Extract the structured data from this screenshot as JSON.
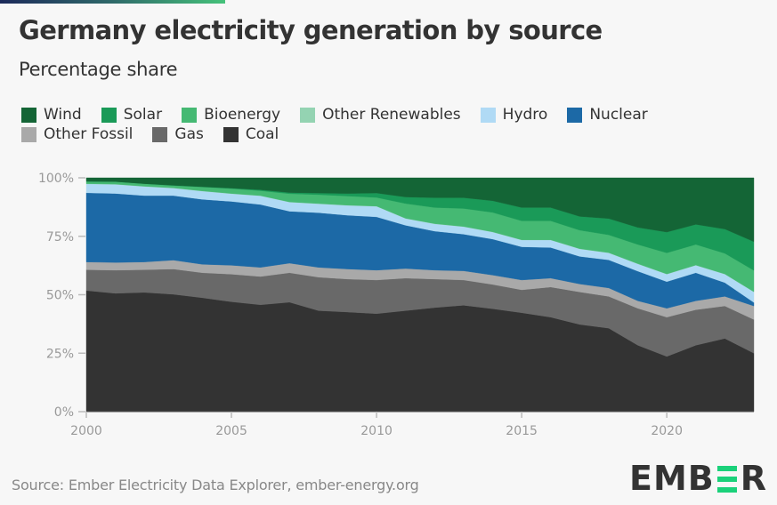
{
  "header": {
    "title": "Germany electricity generation by source",
    "subtitle": "Percentage share"
  },
  "footer": {
    "source": "Source: Ember Electricity Data Explorer, ember-energy.org",
    "logo": {
      "left": "EMB",
      "right": "R",
      "accent_color": "#1bd17a"
    }
  },
  "chart_data": {
    "type": "area",
    "stacked": true,
    "normalized": true,
    "title": "Germany electricity generation by source",
    "subtitle": "Percentage share",
    "xlabel": "",
    "ylabel": "",
    "x": [
      2000,
      2001,
      2002,
      2003,
      2004,
      2005,
      2006,
      2007,
      2008,
      2009,
      2010,
      2011,
      2012,
      2013,
      2014,
      2015,
      2016,
      2017,
      2018,
      2019,
      2020,
      2021,
      2022,
      2023
    ],
    "xlim": [
      2000,
      2023
    ],
    "ylim": [
      0,
      100
    ],
    "x_ticks": [
      2000,
      2005,
      2010,
      2015,
      2020
    ],
    "x_tick_labels": [
      "2000",
      "2005",
      "2010",
      "2015",
      "2020"
    ],
    "y_ticks": [
      0,
      25,
      50,
      75,
      100
    ],
    "y_tick_labels": [
      "0%",
      "25%",
      "50%",
      "75%",
      "100%"
    ],
    "grid": false,
    "legend_position": "top",
    "legend_order": [
      "Wind",
      "Solar",
      "Bioenergy",
      "Other Renewables",
      "Hydro",
      "Nuclear",
      "Other Fossil",
      "Gas",
      "Coal"
    ],
    "series": [
      {
        "name": "Coal",
        "color": "#333333",
        "values": [
          51.8,
          50.6,
          51.0,
          50.2,
          48.7,
          47.0,
          45.7,
          46.8,
          43.2,
          42.6,
          41.9,
          43.2,
          44.5,
          45.5,
          44.0,
          42.3,
          40.4,
          37.3,
          35.7,
          28.4,
          23.6,
          28.4,
          31.3,
          25.0
        ]
      },
      {
        "name": "Gas",
        "color": "#696969",
        "values": [
          8.9,
          9.9,
          9.7,
          10.8,
          10.7,
          11.8,
          12.1,
          12.6,
          14.3,
          14.1,
          14.4,
          13.9,
          12.2,
          10.8,
          10.4,
          9.8,
          12.9,
          13.9,
          13.6,
          15.8,
          16.8,
          15.2,
          13.9,
          14.4
        ]
      },
      {
        "name": "Other Fossil",
        "color": "#a9a9a9",
        "values": [
          3.3,
          3.3,
          3.3,
          3.8,
          3.6,
          3.8,
          3.9,
          4.1,
          4.2,
          4.3,
          4.2,
          4.1,
          3.8,
          3.9,
          4.0,
          4.2,
          3.8,
          3.4,
          3.6,
          3.2,
          3.8,
          3.8,
          4.1,
          5.8
        ]
      },
      {
        "name": "Nuclear",
        "color": "#1c69a6",
        "values": [
          29.6,
          29.5,
          28.4,
          27.6,
          27.8,
          27.3,
          26.9,
          22.2,
          23.4,
          23.0,
          22.8,
          18.5,
          16.7,
          15.7,
          15.4,
          14.2,
          13.1,
          11.8,
          12.0,
          12.7,
          11.4,
          12.0,
          5.9,
          1.5
        ]
      },
      {
        "name": "Hydro",
        "color": "#b0daf5",
        "values": [
          3.8,
          3.9,
          3.9,
          3.2,
          3.5,
          3.3,
          3.7,
          3.9,
          3.8,
          4.2,
          4.5,
          2.9,
          3.1,
          3.2,
          3.0,
          2.9,
          3.2,
          3.2,
          3.0,
          3.1,
          3.2,
          3.2,
          3.6,
          4.5
        ]
      },
      {
        "name": "Other Renewables",
        "color": "#94d3b2",
        "values": [
          0.1,
          0.1,
          0.1,
          0.1,
          0.1,
          0.1,
          0.1,
          0.1,
          0.1,
          0.1,
          0.1,
          0.1,
          0.1,
          0.1,
          0.1,
          0.1,
          0.1,
          0.1,
          0.1,
          0.1,
          0.1,
          0.1,
          0.1,
          0.1
        ]
      },
      {
        "name": "Bioenergy",
        "color": "#45b973",
        "values": [
          1.0,
          1.1,
          1.1,
          1.0,
          1.7,
          2.1,
          2.1,
          3.5,
          3.8,
          3.9,
          3.7,
          6.3,
          6.9,
          7.7,
          8.3,
          8.1,
          8.1,
          7.9,
          7.6,
          8.2,
          9.0,
          8.8,
          8.8,
          9.1
        ]
      },
      {
        "name": "Solar",
        "color": "#1a9a58",
        "values": [
          0.0,
          0.0,
          0.0,
          0.1,
          0.1,
          0.2,
          0.4,
          0.5,
          0.7,
          1.1,
          1.9,
          2.8,
          4.2,
          4.6,
          5.0,
          5.7,
          5.7,
          5.9,
          7.0,
          7.3,
          8.9,
          8.6,
          10.4,
          12.3
        ]
      },
      {
        "name": "Wind",
        "color": "#146536",
        "values": [
          1.5,
          1.6,
          2.5,
          3.2,
          3.8,
          4.4,
          5.1,
          6.3,
          6.5,
          6.7,
          6.5,
          8.2,
          8.5,
          8.5,
          9.8,
          12.7,
          12.7,
          16.5,
          17.4,
          21.2,
          23.2,
          19.9,
          21.9,
          27.3
        ]
      }
    ]
  }
}
